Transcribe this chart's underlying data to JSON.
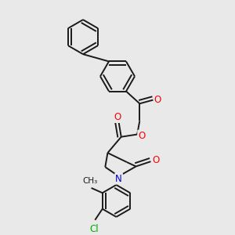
{
  "bg_color": "#e9e9e9",
  "line_color": "#1a1a1a",
  "bond_width": 1.4,
  "atom_colors": {
    "O": "#ff0000",
    "N": "#0000cc",
    "Cl": "#00aa00",
    "C": "#1a1a1a"
  },
  "font_size": 8.5
}
